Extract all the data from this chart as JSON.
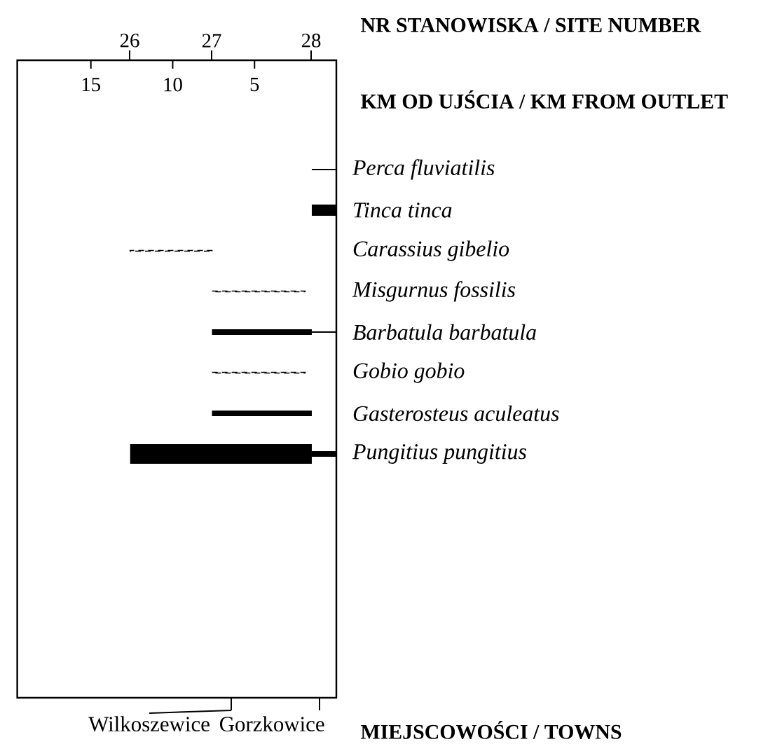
{
  "chart_data": {
    "type": "bar",
    "orientation": "horizontal",
    "categories": [
      "Perca fluviatilis",
      "Tinca tinca",
      "Carassius gibelio",
      "Misgurnus fossilis",
      "Barbatula barbatula",
      "Gobio gobio",
      "Gasterosteus aculeatus",
      "Pungitius pungitius"
    ],
    "xlabel": "KM OD UJŚCIA / KM FROM OUTLET",
    "xlim": [
      19.5,
      0
    ],
    "xticks": [
      15,
      10,
      5
    ],
    "annotations": [
      "26",
      "27",
      "28",
      "NR STANOWISKA / SITE NUMBER",
      "Wilkoszewice",
      "Gorzkowice",
      "MIEJSCOWOŚCI / TOWNS"
    ],
    "series": [
      {
        "color": "#000000",
        "line_style": "solid",
        "base": [
          0,
          null,
          null,
          null,
          0,
          null,
          null,
          null
        ],
        "values": [
          1.5,
          null,
          null,
          null,
          1.5,
          null,
          null,
          null
        ]
      },
      {
        "color": "#000000",
        "line_style": "solid",
        "base": [
          null,
          0,
          null,
          null,
          null,
          null,
          null,
          null
        ],
        "values": [
          null,
          1.5,
          null,
          null,
          null,
          null,
          null,
          null
        ]
      },
      {
        "color": "#000000",
        "line_style": "dashed",
        "base": [
          null,
          null,
          7.6,
          1.9,
          null,
          1.9,
          null,
          null
        ],
        "values": [
          null,
          null,
          5.0,
          5.7,
          null,
          5.7,
          null,
          null
        ]
      },
      {
        "color": "#000000",
        "line_style": "solid",
        "base": [
          null,
          null,
          null,
          null,
          1.5,
          null,
          1.5,
          0
        ],
        "values": [
          null,
          null,
          null,
          null,
          6.1,
          null,
          6.1,
          1.5
        ]
      },
      {
        "color": "#000000",
        "line_style": "solid",
        "base": [
          null,
          null,
          null,
          null,
          null,
          null,
          null,
          1.5
        ],
        "values": [
          null,
          null,
          null,
          null,
          null,
          null,
          null,
          11.1
        ]
      }
    ]
  }
}
